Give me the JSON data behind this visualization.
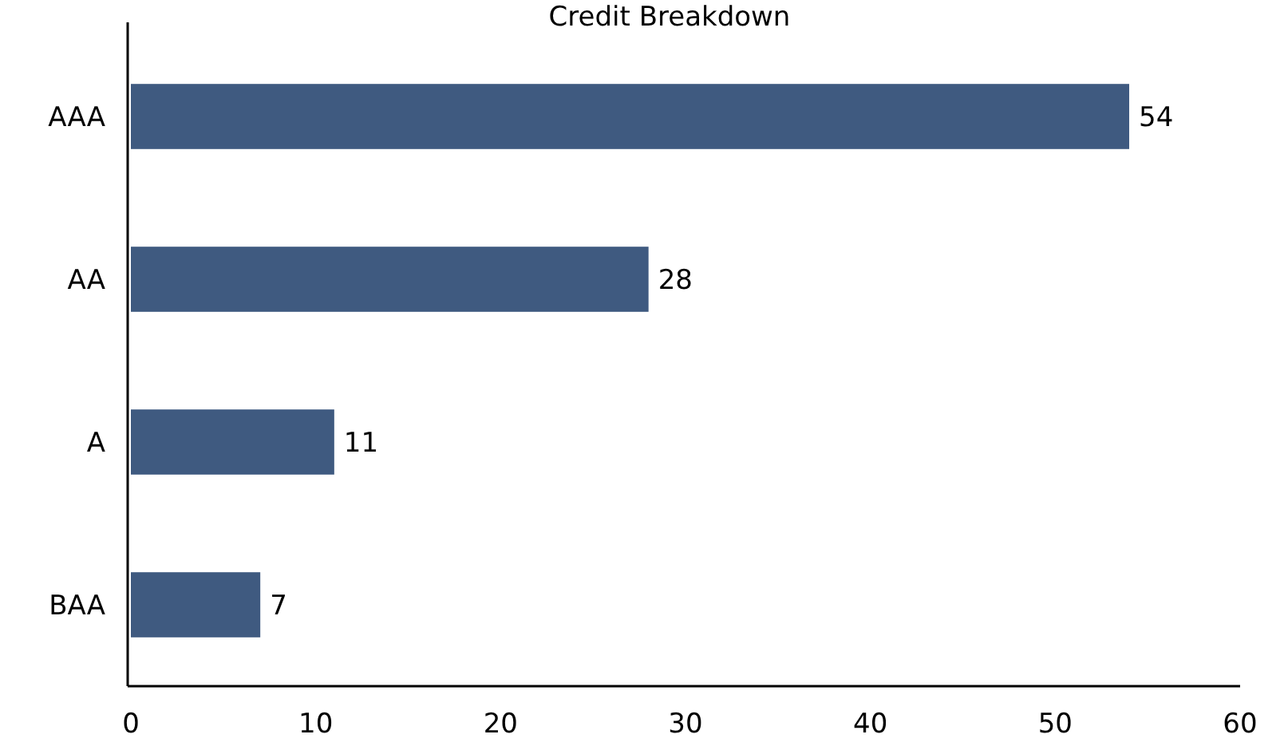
{
  "chart_data": {
    "type": "bar",
    "title": "Credit Breakdown",
    "orientation": "horizontal",
    "categories": [
      "AAA",
      "AA",
      "A",
      "BAA"
    ],
    "values": [
      54,
      28,
      11,
      7
    ],
    "color": "#3f5a80",
    "xlim": [
      0,
      60
    ],
    "xticks": [
      0,
      10,
      20,
      30,
      40,
      50,
      60
    ],
    "data_labels": true,
    "grid": false
  }
}
